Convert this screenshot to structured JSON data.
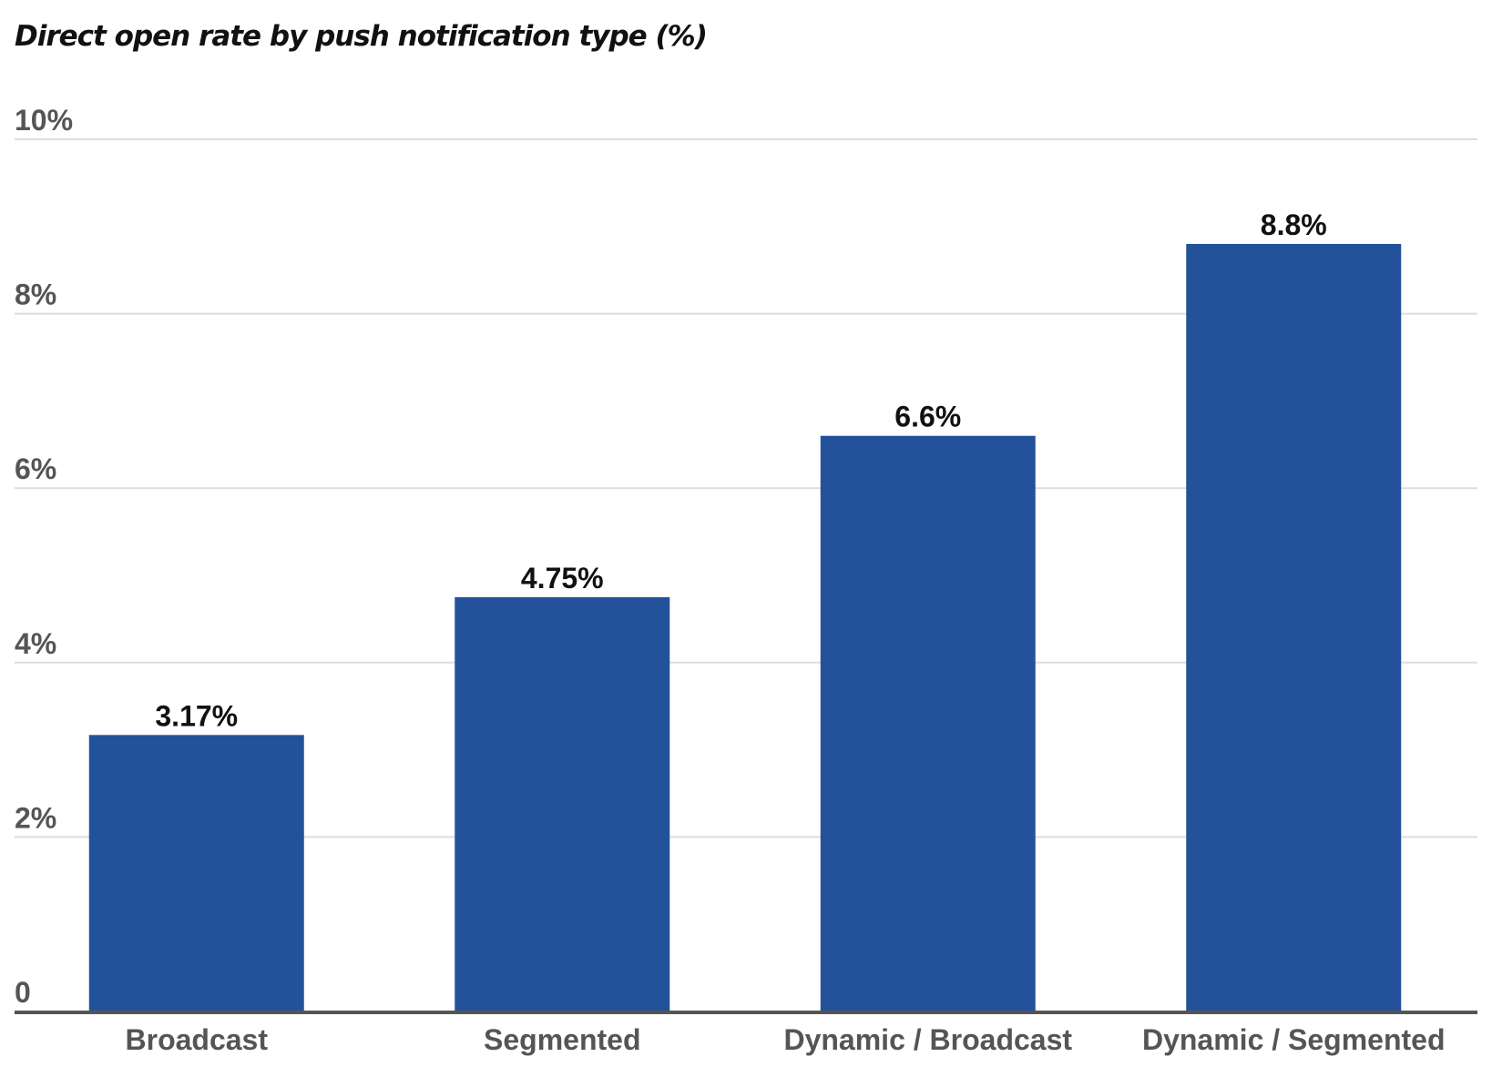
{
  "chart_data": {
    "type": "bar",
    "title": "Direct open rate by push notification type (%)",
    "xlabel": "",
    "ylabel": "",
    "categories": [
      "Broadcast",
      "Segmented",
      "Dynamic / Broadcast",
      "Dynamic / Segmented"
    ],
    "values": [
      3.17,
      4.75,
      6.6,
      8.8
    ],
    "data_labels": [
      "3.17%",
      "4.75%",
      "6.6%",
      "8.8%"
    ],
    "ylim": [
      0,
      10
    ],
    "y_ticks": [
      0,
      2,
      4,
      6,
      8,
      10
    ],
    "y_tick_labels": [
      "0",
      "2%",
      "4%",
      "6%",
      "8%",
      "10%"
    ],
    "grid": true,
    "legend": "none"
  },
  "colors": {
    "bar": "#23529b",
    "grid": "#dddddd",
    "axis": "#555555"
  }
}
